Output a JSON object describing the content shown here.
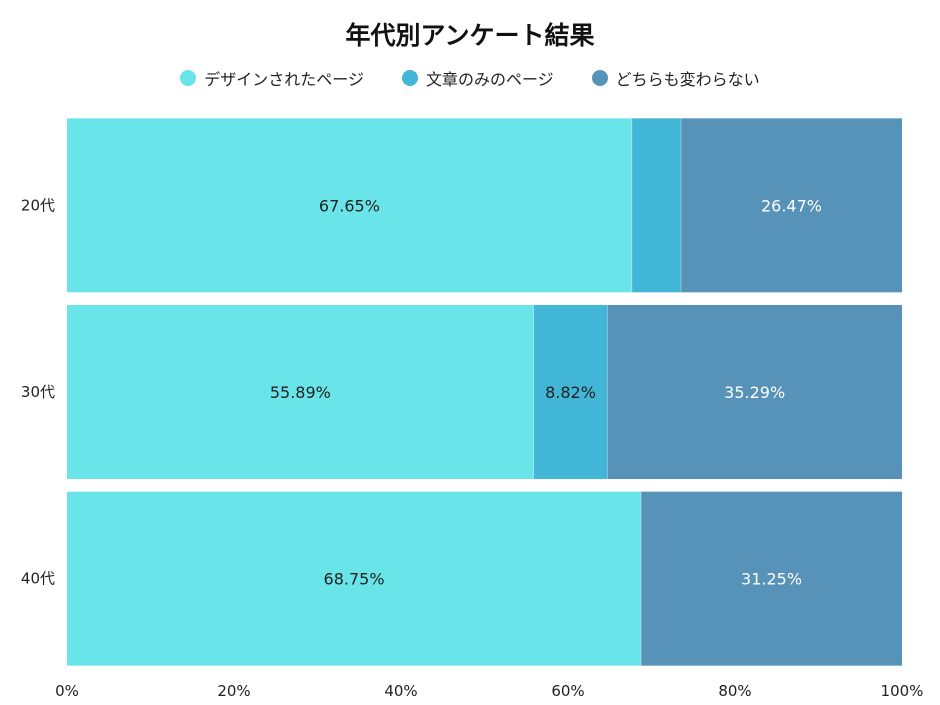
{
  "chart_data": {
    "type": "bar",
    "orientation": "horizontal",
    "stacked": true,
    "percent_stacked": true,
    "title": "年代別アンケート結果",
    "categories": [
      "20代",
      "30代",
      "40代"
    ],
    "series": [
      {
        "name": "デザインされたページ",
        "color": "#69E4E8",
        "values": [
          67.65,
          55.89,
          68.75
        ],
        "labels": [
          "67.65%",
          "55.89%",
          "68.75%"
        ],
        "label_color": "#222222"
      },
      {
        "name": "文章のみのページ",
        "color": "#42B6D6",
        "values": [
          5.88,
          8.82,
          0
        ],
        "labels": [
          "",
          "8.82%",
          ""
        ],
        "label_color": "#222222"
      },
      {
        "name": "どちらも変わらない",
        "color": "#5792B8",
        "values": [
          26.47,
          35.29,
          31.25
        ],
        "labels": [
          "26.47%",
          "35.29%",
          "31.25%"
        ],
        "label_color": "#ffffff"
      }
    ],
    "xlim": [
      0,
      100
    ],
    "x_ticks": [
      0,
      20,
      40,
      60,
      80,
      100
    ],
    "x_tick_labels": [
      "0%",
      "20%",
      "40%",
      "60%",
      "80%",
      "100%"
    ],
    "legend_position": "top-center",
    "grid": false
  }
}
